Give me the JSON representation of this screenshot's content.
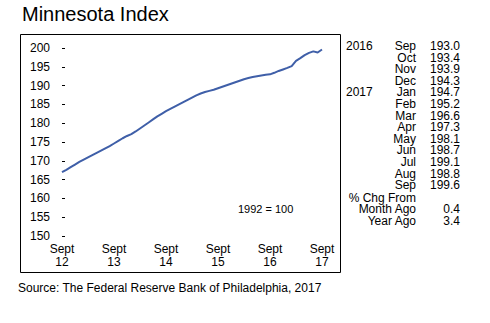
{
  "chart_data": {
    "type": "line",
    "title": "Minnesota Index",
    "color": "#3f5fa8",
    "grid": false,
    "categories": [
      "Sept\n12",
      null,
      null,
      null,
      null,
      null,
      null,
      null,
      null,
      null,
      null,
      null,
      "Sept\n13",
      null,
      null,
      null,
      null,
      null,
      null,
      null,
      null,
      null,
      null,
      null,
      "Sept\n14",
      null,
      null,
      null,
      null,
      null,
      null,
      null,
      null,
      null,
      null,
      null,
      "Sept\n15",
      null,
      null,
      null,
      null,
      null,
      null,
      null,
      null,
      null,
      null,
      null,
      "Sept\n16",
      null,
      null,
      null,
      null,
      null,
      null,
      null,
      null,
      null,
      null,
      null,
      "Sept\n17"
    ],
    "values": [
      167.0,
      167.6,
      168.3,
      169.0,
      169.7,
      170.3,
      170.9,
      171.5,
      172.1,
      172.7,
      173.3,
      173.9,
      174.6,
      175.3,
      176.0,
      176.6,
      177.1,
      177.8,
      178.6,
      179.4,
      180.2,
      181.0,
      181.8,
      182.5,
      183.2,
      183.8,
      184.4,
      185.0,
      185.6,
      186.2,
      186.8,
      187.4,
      187.9,
      188.3,
      188.6,
      188.9,
      189.3,
      189.7,
      190.1,
      190.5,
      190.9,
      191.3,
      191.7,
      192.0,
      192.3,
      192.5,
      192.7,
      192.9,
      193.0,
      193.4,
      193.9,
      194.3,
      194.7,
      195.2,
      196.6,
      197.3,
      198.1,
      198.7,
      199.1,
      198.8,
      199.6
    ],
    "ylim": [
      150,
      200
    ],
    "yticks": [
      150,
      155,
      160,
      165,
      170,
      175,
      180,
      185,
      190,
      195,
      200
    ],
    "annotations": {
      "base_note": "1992 = 100",
      "source": "Source: The Federal Reserve Bank of Philadelphia, 2017",
      "table_rows": [
        [
          "2016",
          "Sep",
          "193.0"
        ],
        [
          "",
          "Oct",
          "193.4"
        ],
        [
          "",
          "Nov",
          "193.9"
        ],
        [
          "",
          "Dec",
          "194.3"
        ],
        [
          "2017",
          "Jan",
          "194.7"
        ],
        [
          "",
          "Feb",
          "195.2"
        ],
        [
          "",
          "Mar",
          "196.6"
        ],
        [
          "",
          "Apr",
          "197.3"
        ],
        [
          "",
          "May",
          "198.1"
        ],
        [
          "",
          "Jun",
          "198.7"
        ],
        [
          "",
          "Jul",
          "199.1"
        ],
        [
          "",
          "Aug",
          "198.8"
        ],
        [
          "",
          "Sep",
          "199.6"
        ]
      ],
      "change_title": "% Chg From",
      "change_rows": [
        [
          "Month Ago",
          "0.4"
        ],
        [
          "Year Ago",
          "3.4"
        ]
      ]
    }
  }
}
